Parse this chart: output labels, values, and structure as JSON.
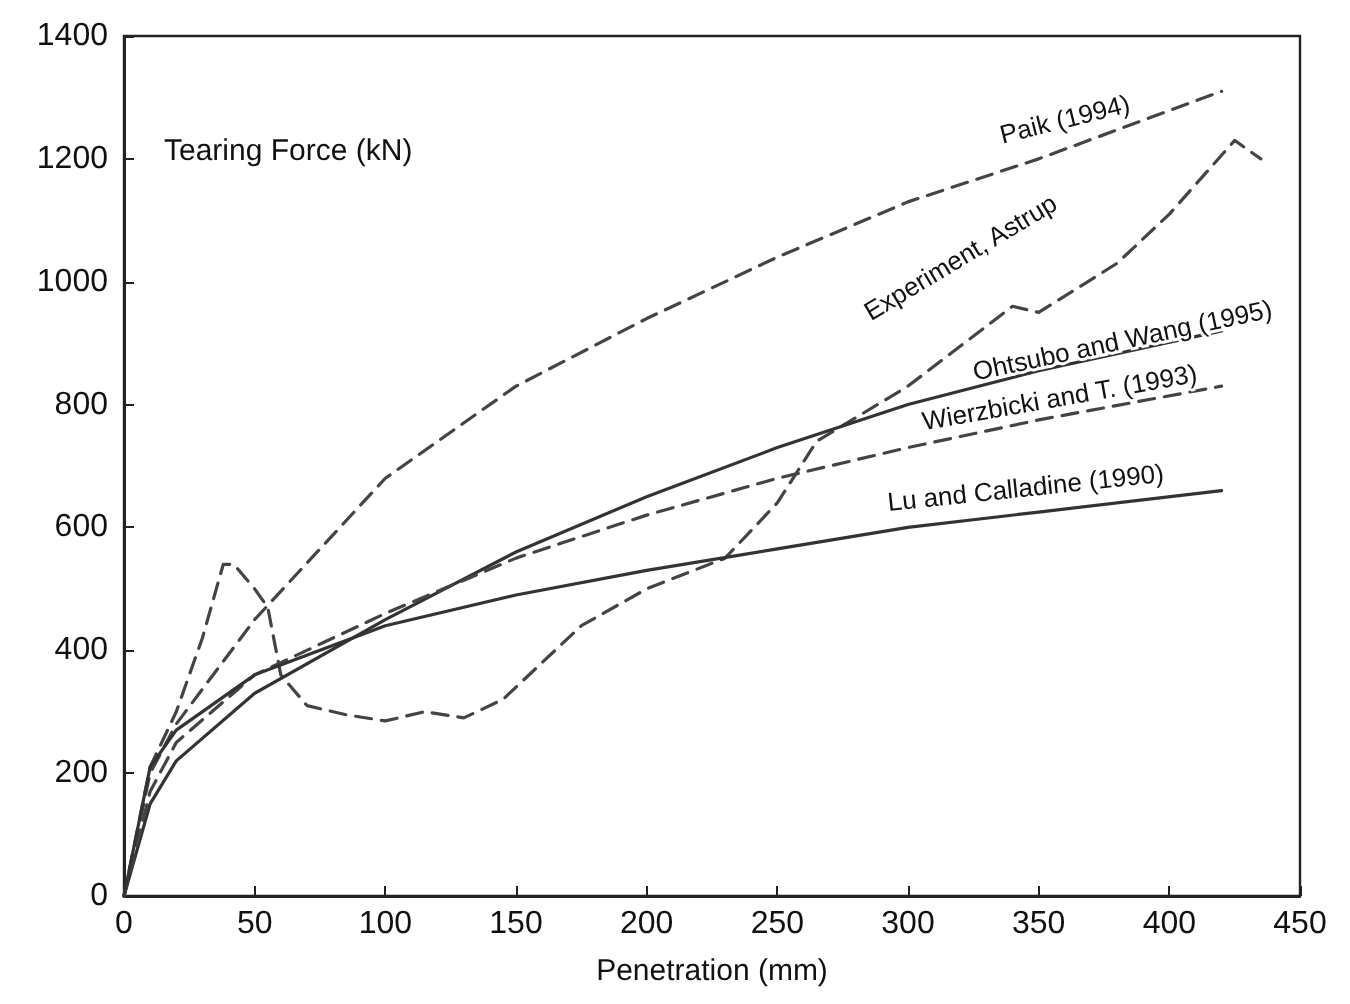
{
  "chart_data": {
    "type": "line",
    "xlabel": "Penetration (mm)",
    "ylabel": "Tearing Force (kN)",
    "xlim": [
      0,
      450
    ],
    "xticks": [
      0,
      50,
      100,
      150,
      200,
      250,
      300,
      350,
      400,
      450
    ],
    "ylim": [
      0,
      1400
    ],
    "yticks": [
      0,
      200,
      400,
      600,
      800,
      1000,
      1200,
      1400
    ],
    "grid": false,
    "legend": false,
    "marker": "none",
    "series": [
      {
        "name": "Paik (1994)",
        "color": "#444444",
        "line_style": "dashed",
        "x": [
          0,
          10,
          20,
          50,
          100,
          150,
          200,
          250,
          300,
          350,
          420
        ],
        "values": [
          0,
          200,
          280,
          450,
          680,
          830,
          940,
          1040,
          1130,
          1200,
          1310
        ]
      },
      {
        "name": "Experiment, Astrup",
        "color": "#444444",
        "line_style": "dashed",
        "x": [
          0,
          10,
          20,
          30,
          38,
          42,
          50,
          55,
          60,
          70,
          85,
          100,
          115,
          130,
          145,
          175,
          200,
          230,
          250,
          265,
          300,
          340,
          350,
          380,
          400,
          425,
          435
        ],
        "values": [
          0,
          210,
          300,
          420,
          540,
          540,
          500,
          470,
          360,
          310,
          295,
          285,
          300,
          290,
          320,
          440,
          500,
          550,
          640,
          740,
          830,
          960,
          950,
          1030,
          1110,
          1230,
          1200
        ]
      },
      {
        "name": "Ohtsubo and Wang (1995)",
        "color": "#333333",
        "line_style": "solid",
        "x": [
          0,
          10,
          20,
          50,
          100,
          150,
          200,
          250,
          300,
          350,
          420
        ],
        "values": [
          0,
          150,
          220,
          330,
          450,
          560,
          650,
          730,
          800,
          855,
          920
        ]
      },
      {
        "name": "Wierzbicki and T. (1993)",
        "color": "#444444",
        "line_style": "dashed",
        "x": [
          0,
          10,
          20,
          50,
          100,
          150,
          200,
          250,
          300,
          350,
          420
        ],
        "values": [
          0,
          170,
          250,
          360,
          460,
          550,
          620,
          680,
          730,
          775,
          830
        ]
      },
      {
        "name": "Lu and Calladine (1990)",
        "color": "#333333",
        "line_style": "solid",
        "x": [
          0,
          10,
          20,
          50,
          100,
          150,
          200,
          250,
          300,
          350,
          420
        ],
        "values": [
          0,
          210,
          270,
          360,
          440,
          490,
          530,
          565,
          600,
          625,
          660
        ]
      }
    ]
  }
}
